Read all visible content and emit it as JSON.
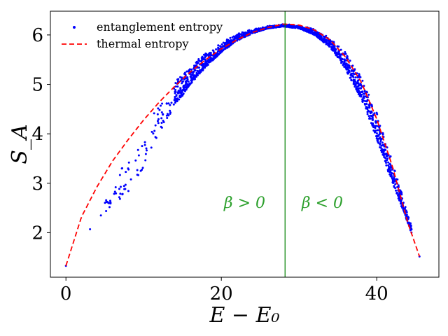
{
  "chart_data": {
    "type": "scatter",
    "xlabel": "E − E₀",
    "ylabel": "S_A",
    "xlim": [
      -2,
      48
    ],
    "ylim": [
      1.1,
      6.48
    ],
    "xticks": [
      0,
      20,
      40
    ],
    "yticks": [
      2,
      3,
      4,
      5,
      6
    ],
    "grid": false,
    "legend_position": "top-left",
    "series": [
      {
        "name": "entanglement entropy",
        "kind": "scatter",
        "color": "#0000ff",
        "envelope": {
          "description_of_band": "lower and upper bounds of dense point cloud",
          "x": [
            0,
            3.1,
            4.5,
            6.5,
            8.0,
            10.0,
            12.0,
            14.0,
            16.0,
            18.0,
            20.0,
            22.0,
            24.0,
            26.0,
            28.0,
            30.0,
            32.0,
            34.0,
            36.0,
            38.0,
            40.0,
            42.0,
            44.0,
            45.5
          ],
          "lower": [
            1.33,
            2.07,
            2.35,
            2.6,
            2.8,
            3.2,
            4.0,
            4.55,
            5.0,
            5.35,
            5.65,
            5.88,
            6.03,
            6.13,
            6.17,
            6.13,
            6.0,
            5.75,
            5.3,
            4.7,
            3.9,
            3.0,
            2.2,
            1.52
          ],
          "upper": [
            1.33,
            2.07,
            2.4,
            3.35,
            3.6,
            4.0,
            4.65,
            5.05,
            5.4,
            5.65,
            5.85,
            6.02,
            6.12,
            6.18,
            6.22,
            6.2,
            6.12,
            5.95,
            5.65,
            5.15,
            4.45,
            3.45,
            2.4,
            1.52
          ]
        }
      },
      {
        "name": "thermal entropy",
        "kind": "line",
        "style": "dashed",
        "color": "#ff0000",
        "x": [
          0,
          2,
          4,
          6,
          8,
          10,
          12,
          14,
          16,
          18,
          20,
          22,
          24,
          26,
          28,
          30,
          32,
          34,
          36,
          38,
          40,
          42,
          44,
          45.5
        ],
        "y": [
          1.33,
          2.32,
          2.93,
          3.45,
          3.88,
          4.28,
          4.64,
          4.96,
          5.25,
          5.5,
          5.72,
          5.9,
          6.05,
          6.15,
          6.22,
          6.2,
          6.1,
          5.9,
          5.55,
          5.05,
          4.3,
          3.35,
          2.2,
          1.52
        ]
      }
    ],
    "vline": {
      "x": 28.2,
      "color": "#008000"
    },
    "annotations": [
      {
        "text": "β > 0",
        "x": 23.0,
        "y": 2.5,
        "color": "#2ca02c"
      },
      {
        "text": "β < 0",
        "x": 33.0,
        "y": 2.5,
        "color": "#2ca02c"
      }
    ]
  }
}
